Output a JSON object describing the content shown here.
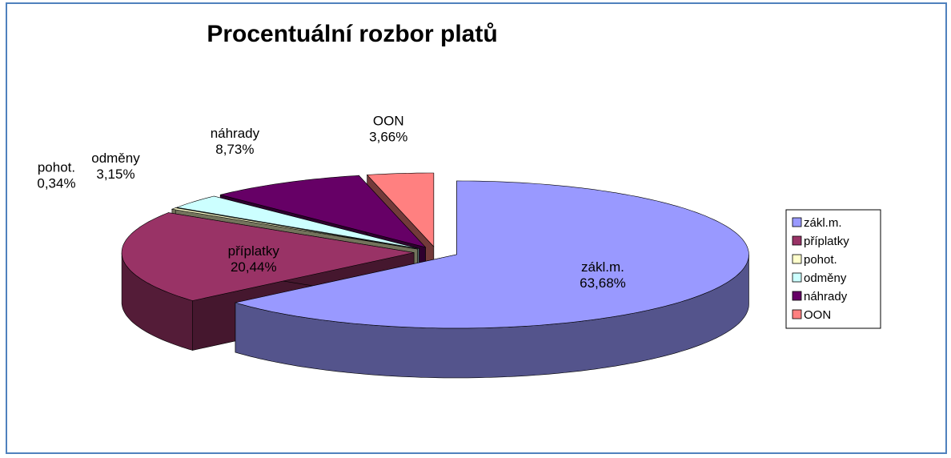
{
  "chart_data": {
    "type": "pie3d",
    "title": "Procentuální rozbor platů",
    "categories": [
      "zákl.m.",
      "příplatky",
      "pohot.",
      "odměny",
      "náhrady",
      "OON"
    ],
    "values": [
      63.68,
      20.44,
      0.34,
      3.15,
      8.73,
      3.66
    ],
    "value_labels": [
      "63,68%",
      "20,44%",
      "0,34%",
      "3,15%",
      "8,73%",
      "3,66%"
    ],
    "colors": [
      "#9999ff",
      "#993366",
      "#ffffcc",
      "#ccffff",
      "#660066",
      "#ff8080"
    ],
    "legend": "right"
  }
}
